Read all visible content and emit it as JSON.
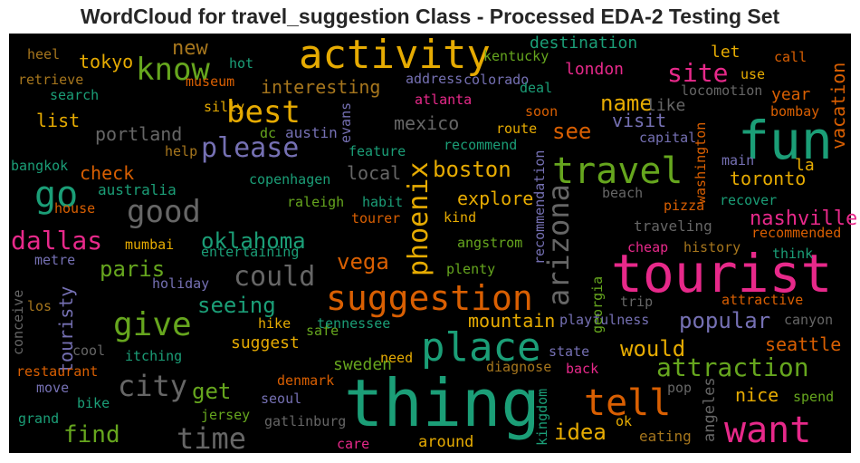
{
  "title": "WordCloud for travel_suggestion Class - Processed EDA-2 Testing Set",
  "words": [
    {
      "text": "activity",
      "color": "#e6ab02"
    },
    {
      "text": "know",
      "color": "#66a61e"
    },
    {
      "text": "new",
      "color": "#a6761d"
    },
    {
      "text": "fun",
      "color": "#1b9e77"
    },
    {
      "text": "tourist",
      "color": "#e7298a"
    },
    {
      "text": "thing",
      "color": "#1b9e77"
    },
    {
      "text": "want",
      "color": "#e7298a"
    },
    {
      "text": "tell",
      "color": "#d95f02"
    },
    {
      "text": "place",
      "color": "#1b9e77"
    },
    {
      "text": "suggestion",
      "color": "#d95f02"
    },
    {
      "text": "travel",
      "color": "#66a61e"
    },
    {
      "text": "go",
      "color": "#1b9e77"
    },
    {
      "text": "good",
      "color": "#666666"
    },
    {
      "text": "give",
      "color": "#66a61e"
    },
    {
      "text": "city",
      "color": "#666666"
    },
    {
      "text": "time",
      "color": "#666666"
    },
    {
      "text": "find",
      "color": "#66a61e"
    },
    {
      "text": "get",
      "color": "#66a61e"
    },
    {
      "text": "seeing",
      "color": "#1b9e77"
    },
    {
      "text": "could",
      "color": "#666666"
    },
    {
      "text": "oklahoma",
      "color": "#1b9e77"
    },
    {
      "text": "dallas",
      "color": "#e7298a"
    },
    {
      "text": "paris",
      "color": "#66a61e"
    },
    {
      "text": "please",
      "color": "#7570b3"
    },
    {
      "text": "best",
      "color": "#e6ab02"
    },
    {
      "text": "tokyo",
      "color": "#e6ab02"
    },
    {
      "text": "interesting",
      "color": "#a6761d"
    },
    {
      "text": "portland",
      "color": "#666666"
    },
    {
      "text": "list",
      "color": "#e6ab02"
    },
    {
      "text": "check",
      "color": "#d95f02"
    },
    {
      "text": "australia",
      "color": "#1b9e77"
    },
    {
      "text": "bangkok",
      "color": "#1b9e77"
    },
    {
      "text": "house",
      "color": "#d95f02"
    },
    {
      "text": "mumbai",
      "color": "#e6ab02"
    },
    {
      "text": "metre",
      "color": "#7570b3"
    },
    {
      "text": "entertaining",
      "color": "#1b9e77"
    },
    {
      "text": "holiday",
      "color": "#7570b3"
    },
    {
      "text": "conceive",
      "color": "#666666"
    },
    {
      "text": "los",
      "color": "#a6761d"
    },
    {
      "text": "touristy",
      "color": "#7570b3"
    },
    {
      "text": "cool",
      "color": "#666666"
    },
    {
      "text": "itching",
      "color": "#1b9e77"
    },
    {
      "text": "restaurant",
      "color": "#d95f02"
    },
    {
      "text": "move",
      "color": "#7570b3"
    },
    {
      "text": "bike",
      "color": "#1b9e77"
    },
    {
      "text": "grand",
      "color": "#1b9e77"
    },
    {
      "text": "jersey",
      "color": "#66a61e"
    },
    {
      "text": "seoul",
      "color": "#7570b3"
    },
    {
      "text": "gatlinburg",
      "color": "#666666"
    },
    {
      "text": "denmark",
      "color": "#d95f02"
    },
    {
      "text": "safe",
      "color": "#66a61e"
    },
    {
      "text": "hike",
      "color": "#e6ab02"
    },
    {
      "text": "suggest",
      "color": "#e6ab02"
    },
    {
      "text": "tennessee",
      "color": "#1b9e77"
    },
    {
      "text": "sweden",
      "color": "#66a61e"
    },
    {
      "text": "need",
      "color": "#e6ab02"
    },
    {
      "text": "care",
      "color": "#e7298a"
    },
    {
      "text": "around",
      "color": "#e6ab02"
    },
    {
      "text": "kingdom",
      "color": "#1b9e77"
    },
    {
      "text": "idea",
      "color": "#e6ab02"
    },
    {
      "text": "diagnose",
      "color": "#a6761d"
    },
    {
      "text": "back",
      "color": "#e7298a"
    },
    {
      "text": "state",
      "color": "#7570b3"
    },
    {
      "text": "would",
      "color": "#e6ab02"
    },
    {
      "text": "attraction",
      "color": "#66a61e"
    },
    {
      "text": "ok",
      "color": "#e6ab02"
    },
    {
      "text": "eating",
      "color": "#a6761d"
    },
    {
      "text": "angeles",
      "color": "#666666"
    },
    {
      "text": "pop",
      "color": "#666666"
    },
    {
      "text": "nice",
      "color": "#e6ab02"
    },
    {
      "text": "spend",
      "color": "#66a61e"
    },
    {
      "text": "seattle",
      "color": "#d95f02"
    },
    {
      "text": "canyon",
      "color": "#666666"
    },
    {
      "text": "popular",
      "color": "#7570b3"
    },
    {
      "text": "playfulness",
      "color": "#7570b3"
    },
    {
      "text": "mountain",
      "color": "#e6ab02"
    },
    {
      "text": "trip",
      "color": "#666666"
    },
    {
      "text": "attractive",
      "color": "#d95f02"
    },
    {
      "text": "georgia",
      "color": "#66a61e"
    },
    {
      "text": "plenty",
      "color": "#66a61e"
    },
    {
      "text": "angstrom",
      "color": "#66a61e"
    },
    {
      "text": "vega",
      "color": "#d95f02"
    },
    {
      "text": "phoenix",
      "color": "#e6ab02"
    },
    {
      "text": "arizona",
      "color": "#666666"
    },
    {
      "text": "recommendation",
      "color": "#7570b3"
    },
    {
      "text": "boston",
      "color": "#e6ab02"
    },
    {
      "text": "local",
      "color": "#666666"
    },
    {
      "text": "explore",
      "color": "#e6ab02"
    },
    {
      "text": "kind",
      "color": "#e6ab02"
    },
    {
      "text": "tourer",
      "color": "#d95f02"
    },
    {
      "text": "habit",
      "color": "#1b9e77"
    },
    {
      "text": "raleigh",
      "color": "#66a61e"
    },
    {
      "text": "copenhagen",
      "color": "#1b9e77"
    },
    {
      "text": "feature",
      "color": "#1b9e77"
    },
    {
      "text": "recommend",
      "color": "#1b9e77"
    },
    {
      "text": "mexico",
      "color": "#666666"
    },
    {
      "text": "dc",
      "color": "#66a61e"
    },
    {
      "text": "austin",
      "color": "#7570b3"
    },
    {
      "text": "evans",
      "color": "#7570b3"
    },
    {
      "text": "route",
      "color": "#e6ab02"
    },
    {
      "text": "see",
      "color": "#d95f02"
    },
    {
      "text": "visit",
      "color": "#7570b3"
    },
    {
      "text": "name",
      "color": "#e6ab02"
    },
    {
      "text": "like",
      "color": "#666666"
    },
    {
      "text": "site",
      "color": "#e7298a"
    },
    {
      "text": "london",
      "color": "#e7298a"
    },
    {
      "text": "destination",
      "color": "#1b9e77"
    },
    {
      "text": "kentucky",
      "color": "#66a61e"
    },
    {
      "text": "colorado",
      "color": "#7570b3"
    },
    {
      "text": "deal",
      "color": "#1b9e77"
    },
    {
      "text": "soon",
      "color": "#d95f02"
    },
    {
      "text": "atlanta",
      "color": "#e7298a"
    },
    {
      "text": "address",
      "color": "#7570b3"
    },
    {
      "text": "let",
      "color": "#e6ab02"
    },
    {
      "text": "call",
      "color": "#d95f02"
    },
    {
      "text": "use",
      "color": "#e6ab02"
    },
    {
      "text": "vacation",
      "color": "#d95f02"
    },
    {
      "text": "year",
      "color": "#d95f02"
    },
    {
      "text": "bombay",
      "color": "#d95f02"
    },
    {
      "text": "locomotion",
      "color": "#666666"
    },
    {
      "text": "washington",
      "color": "#d95f02"
    },
    {
      "text": "capital",
      "color": "#7570b3"
    },
    {
      "text": "main",
      "color": "#7570b3"
    },
    {
      "text": "la",
      "color": "#e6ab02"
    },
    {
      "text": "toronto",
      "color": "#e6ab02"
    },
    {
      "text": "recover",
      "color": "#1b9e77"
    },
    {
      "text": "pizza",
      "color": "#d95f02"
    },
    {
      "text": "beach",
      "color": "#666666"
    },
    {
      "text": "traveling",
      "color": "#666666"
    },
    {
      "text": "nashville",
      "color": "#e7298a"
    },
    {
      "text": "recommended",
      "color": "#d95f02"
    },
    {
      "text": "think",
      "color": "#1b9e77"
    },
    {
      "text": "history",
      "color": "#a6761d"
    },
    {
      "text": "cheap",
      "color": "#e7298a"
    },
    {
      "text": "heel",
      "color": "#a6761d"
    },
    {
      "text": "retrieve",
      "color": "#a6761d"
    },
    {
      "text": "search",
      "color": "#1b9e77"
    },
    {
      "text": "hot",
      "color": "#1b9e77"
    },
    {
      "text": "museum",
      "color": "#d95f02"
    },
    {
      "text": "silly",
      "color": "#e6ab02"
    },
    {
      "text": "help",
      "color": "#a6761d"
    }
  ]
}
